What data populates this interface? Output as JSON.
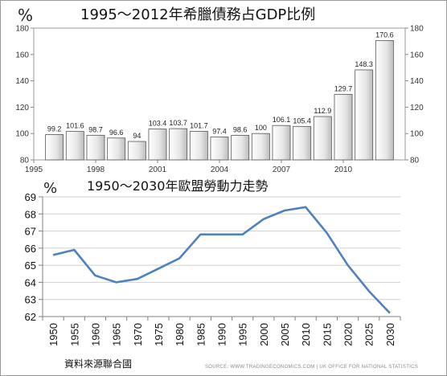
{
  "chart_data": [
    {
      "type": "bar",
      "title": "1995～2012年希臘債務占GDP比例",
      "unit_label": "%",
      "x": [
        1996,
        1997,
        1998,
        1999,
        2000,
        2001,
        2002,
        2003,
        2004,
        2005,
        2006,
        2007,
        2008,
        2009,
        2010,
        2011,
        2012
      ],
      "values": [
        99.2,
        101.6,
        98.7,
        96.6,
        94,
        103.4,
        103.7,
        101.7,
        97.4,
        98.6,
        100,
        106.1,
        105.4,
        112.9,
        129.7,
        148.3,
        170.6
      ],
      "data_labels": [
        "99.2",
        "101.6",
        "98.7",
        "96.6",
        "94",
        "103.4",
        "103.7",
        "101.7",
        "97.4",
        "98.6",
        "100",
        "106.1",
        "105.4",
        "112.9",
        "129.7",
        "148.3",
        "170.6"
      ],
      "xlim": [
        1995,
        2013
      ],
      "xticks": [
        "1995",
        "1998",
        "2001",
        "2004",
        "2007",
        "2010"
      ],
      "ylim": [
        80,
        180
      ],
      "yticks": [
        "80",
        "100",
        "120",
        "140",
        "160",
        "180"
      ],
      "y_axis_both_sides": true,
      "grid": false
    },
    {
      "type": "line",
      "title": "1950～2030年歐盟勞動力走勢",
      "unit_label": "%",
      "x": [
        "1950",
        "1955",
        "1960",
        "1965",
        "1970",
        "1975",
        "1980",
        "1985",
        "1990",
        "1995",
        "2000",
        "2005",
        "2010",
        "2015",
        "2020",
        "2025",
        "2030"
      ],
      "values": [
        65.6,
        65.9,
        64.4,
        64.0,
        64.2,
        64.8,
        65.4,
        66.8,
        66.8,
        66.8,
        67.7,
        68.2,
        68.4,
        66.9,
        65.0,
        63.5,
        62.2
      ],
      "ylim": [
        62,
        69
      ],
      "yticks": [
        "62",
        "63",
        "64",
        "65",
        "66",
        "67",
        "68",
        "69"
      ],
      "grid": true,
      "line_color": "#4f81bd"
    }
  ],
  "footer": {
    "source_note": "資料來源聯合國",
    "credit": "SOURCE: WWW.TRADINGECONOMICS.COM  |  UK OFFICE FOR NATIONAL STATISTICS"
  }
}
